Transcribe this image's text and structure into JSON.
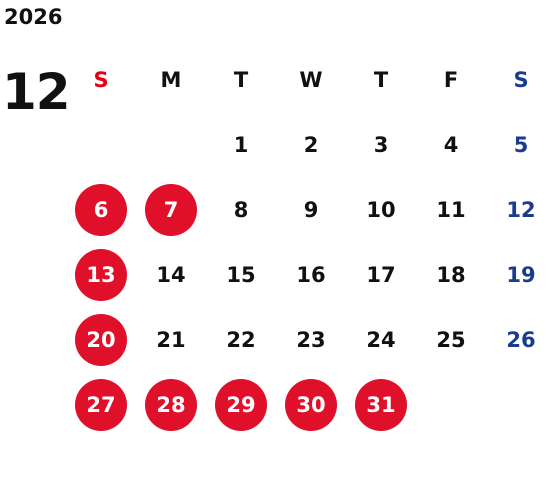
{
  "year": "2026",
  "month": "12",
  "colors": {
    "text": "#111111",
    "sunday_header": "#e60012",
    "saturday": "#1a3c8f",
    "holiday_circle": "#e0102a",
    "holiday_text": "#ffffff"
  },
  "weekdays": [
    {
      "label": "S",
      "kind": "sun"
    },
    {
      "label": "M",
      "kind": "weekday"
    },
    {
      "label": "T",
      "kind": "weekday"
    },
    {
      "label": "W",
      "kind": "weekday"
    },
    {
      "label": "T",
      "kind": "weekday"
    },
    {
      "label": "F",
      "kind": "weekday"
    },
    {
      "label": "S",
      "kind": "sat"
    }
  ],
  "weeks": [
    [
      {
        "day": "",
        "style": "empty"
      },
      {
        "day": "",
        "style": "empty"
      },
      {
        "day": "1",
        "style": "normal"
      },
      {
        "day": "2",
        "style": "normal"
      },
      {
        "day": "3",
        "style": "normal"
      },
      {
        "day": "4",
        "style": "normal"
      },
      {
        "day": "5",
        "style": "saturday"
      }
    ],
    [
      {
        "day": "6",
        "style": "circle"
      },
      {
        "day": "7",
        "style": "circle"
      },
      {
        "day": "8",
        "style": "normal"
      },
      {
        "day": "9",
        "style": "normal"
      },
      {
        "day": "10",
        "style": "normal"
      },
      {
        "day": "11",
        "style": "normal"
      },
      {
        "day": "12",
        "style": "saturday"
      }
    ],
    [
      {
        "day": "13",
        "style": "circle"
      },
      {
        "day": "14",
        "style": "normal"
      },
      {
        "day": "15",
        "style": "normal"
      },
      {
        "day": "16",
        "style": "normal"
      },
      {
        "day": "17",
        "style": "normal"
      },
      {
        "day": "18",
        "style": "normal"
      },
      {
        "day": "19",
        "style": "saturday"
      }
    ],
    [
      {
        "day": "20",
        "style": "circle"
      },
      {
        "day": "21",
        "style": "normal"
      },
      {
        "day": "22",
        "style": "normal"
      },
      {
        "day": "23",
        "style": "normal"
      },
      {
        "day": "24",
        "style": "normal"
      },
      {
        "day": "25",
        "style": "normal"
      },
      {
        "day": "26",
        "style": "saturday"
      }
    ],
    [
      {
        "day": "27",
        "style": "circle"
      },
      {
        "day": "28",
        "style": "circle"
      },
      {
        "day": "29",
        "style": "circle"
      },
      {
        "day": "30",
        "style": "circle"
      },
      {
        "day": "31",
        "style": "circle"
      },
      {
        "day": "",
        "style": "empty"
      },
      {
        "day": "",
        "style": "empty"
      }
    ]
  ]
}
